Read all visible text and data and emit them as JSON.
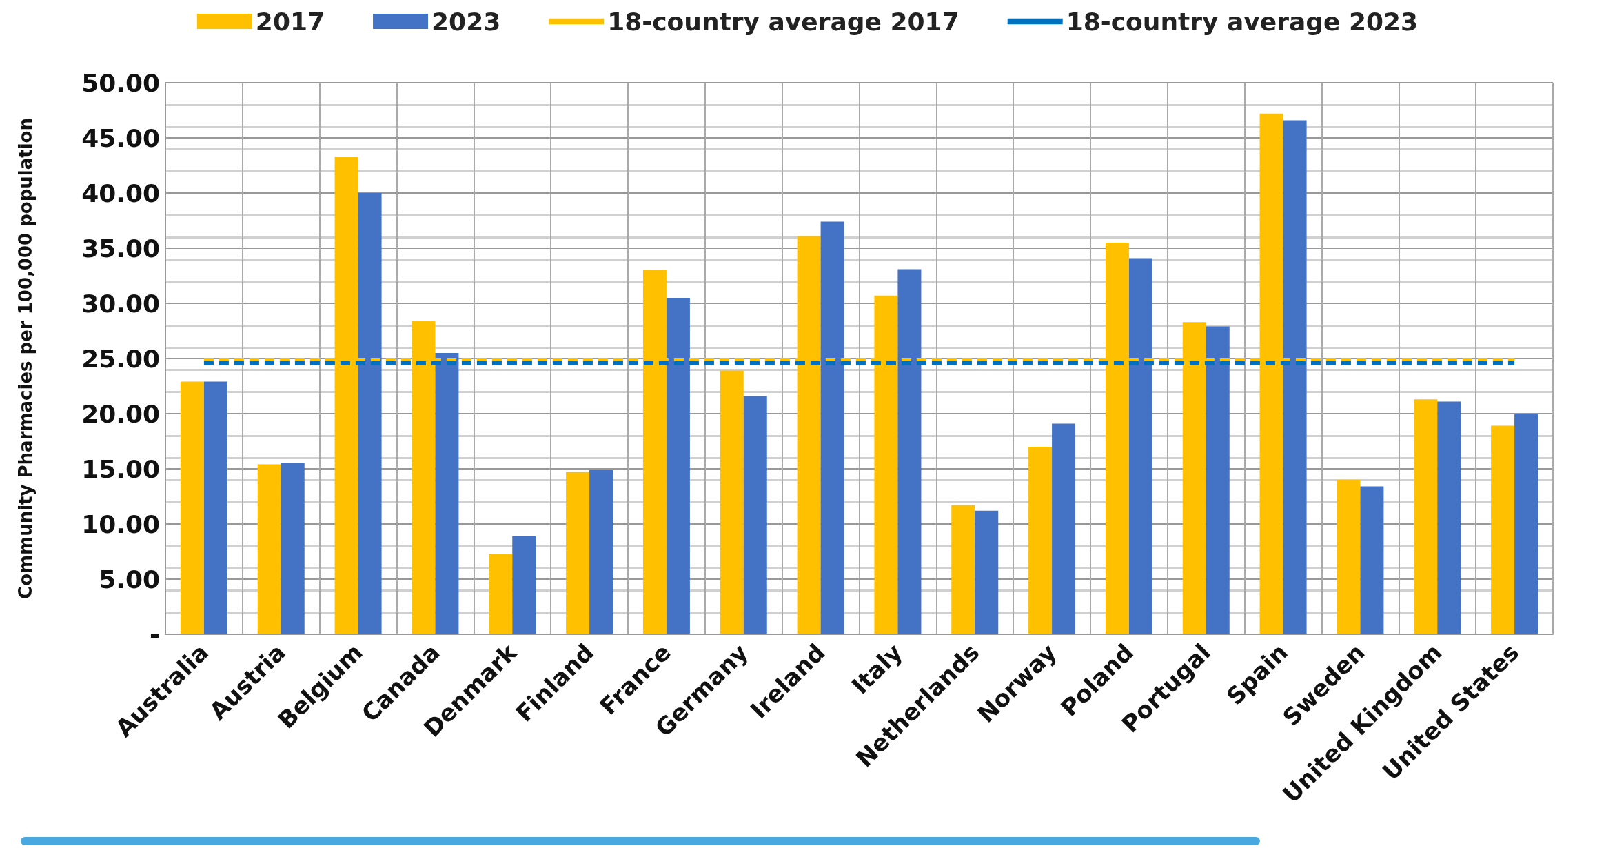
{
  "chart_data": {
    "type": "bar",
    "ylabel": "Community Pharmacies per 100,000 population",
    "categories": [
      "Australia",
      "Austria",
      "Belgium",
      "Canada",
      "Denmark",
      "Finland",
      "France",
      "Germany",
      "Ireland",
      "Italy",
      "Netherlands",
      "Norway",
      "Poland",
      "Portugal",
      "Spain",
      "Sweden",
      "United Kingdom",
      "United States"
    ],
    "series": [
      {
        "name": "2017",
        "color": "#ffc000",
        "values": [
          22.9,
          15.4,
          43.3,
          28.4,
          7.3,
          14.7,
          33.0,
          23.9,
          36.1,
          30.7,
          11.7,
          17.0,
          35.5,
          28.3,
          47.2,
          14.0,
          21.3,
          18.9
        ]
      },
      {
        "name": "2023",
        "color": "#4472c4",
        "values": [
          22.9,
          15.5,
          40.0,
          25.5,
          8.9,
          14.9,
          30.5,
          21.6,
          37.4,
          33.1,
          11.2,
          19.1,
          34.1,
          27.9,
          46.6,
          13.4,
          21.1,
          20.0
        ]
      }
    ],
    "ref_lines": [
      {
        "axis": "y",
        "value": 24.9,
        "label": "18-country average 2017",
        "color": "#ffc000",
        "line_style": "dashed"
      },
      {
        "axis": "y",
        "value": 24.6,
        "label": "18-country average 2023",
        "color": "#0070c0",
        "line_style": "dashed"
      }
    ],
    "ylim": [
      0,
      50
    ],
    "yticks": [
      {
        "value": 0,
        "label": "-"
      },
      {
        "value": 5,
        "label": "5.00"
      },
      {
        "value": 10,
        "label": "10.00"
      },
      {
        "value": 15,
        "label": "15.00"
      },
      {
        "value": 20,
        "label": "20.00"
      },
      {
        "value": 25,
        "label": "25.00"
      },
      {
        "value": 30,
        "label": "30.00"
      },
      {
        "value": 35,
        "label": "35.00"
      },
      {
        "value": 40,
        "label": "40.00"
      },
      {
        "value": 45,
        "label": "45.00"
      },
      {
        "value": 50,
        "label": "50.00"
      }
    ],
    "grid": true,
    "legend": "top"
  }
}
